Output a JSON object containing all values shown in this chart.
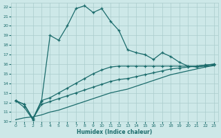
{
  "xlabel": "Humidex (Indice chaleur)",
  "bg_color": "#cde8e8",
  "grid_color": "#aacccc",
  "line_color": "#1a6b6b",
  "xlim": [
    -0.5,
    23.5
  ],
  "ylim": [
    10,
    22.4
  ],
  "x_ticks": [
    0,
    1,
    2,
    3,
    4,
    5,
    6,
    7,
    8,
    9,
    10,
    11,
    12,
    13,
    14,
    15,
    16,
    17,
    18,
    19,
    20,
    21,
    22,
    23
  ],
  "y_ticks": [
    10,
    11,
    12,
    13,
    14,
    15,
    16,
    17,
    18,
    19,
    20,
    21,
    22
  ],
  "curve1_x": [
    0,
    1,
    2,
    3,
    4,
    5,
    6,
    7,
    8,
    9,
    10,
    11,
    12,
    13,
    14,
    15,
    16,
    17,
    18,
    19,
    20,
    21,
    22,
    23
  ],
  "curve1_y": [
    12.2,
    11.5,
    10.2,
    12.1,
    19.0,
    18.5,
    20.0,
    21.8,
    22.1,
    21.4,
    21.8,
    20.5,
    19.5,
    17.5,
    17.2,
    17.0,
    16.5,
    17.2,
    16.8,
    16.2,
    15.8,
    15.7,
    15.8,
    15.9
  ],
  "curve2_x": [
    0,
    1,
    2,
    3,
    4,
    5,
    6,
    7,
    8,
    9,
    10,
    11,
    12,
    13,
    14,
    15,
    16,
    17,
    18,
    19,
    20,
    21,
    22,
    23
  ],
  "curve2_y": [
    12.2,
    11.8,
    10.3,
    12.2,
    12.5,
    13.0,
    13.5,
    14.0,
    14.5,
    15.0,
    15.4,
    15.7,
    15.8,
    15.8,
    15.8,
    15.8,
    15.8,
    15.8,
    15.8,
    15.8,
    15.8,
    15.8,
    15.9,
    16.0
  ],
  "curve3_x": [
    0,
    1,
    2,
    3,
    4,
    5,
    6,
    7,
    8,
    9,
    10,
    11,
    12,
    13,
    14,
    15,
    16,
    17,
    18,
    19,
    20,
    21,
    22,
    23
  ],
  "curve3_y": [
    12.2,
    11.8,
    10.3,
    11.8,
    12.1,
    12.4,
    12.7,
    13.0,
    13.3,
    13.6,
    13.9,
    14.2,
    14.4,
    14.5,
    14.7,
    14.9,
    15.1,
    15.3,
    15.5,
    15.6,
    15.7,
    15.8,
    15.9,
    16.0
  ],
  "curve4_x": [
    0,
    1,
    2,
    3,
    4,
    5,
    6,
    7,
    8,
    9,
    10,
    11,
    12,
    13,
    14,
    15,
    16,
    17,
    18,
    19,
    20,
    21,
    22,
    23
  ],
  "curve4_y": [
    10.2,
    10.4,
    10.5,
    10.7,
    11.0,
    11.2,
    11.5,
    11.8,
    12.1,
    12.4,
    12.7,
    13.0,
    13.2,
    13.4,
    13.7,
    14.0,
    14.3,
    14.6,
    14.9,
    15.1,
    15.3,
    15.5,
    15.7,
    15.85
  ]
}
